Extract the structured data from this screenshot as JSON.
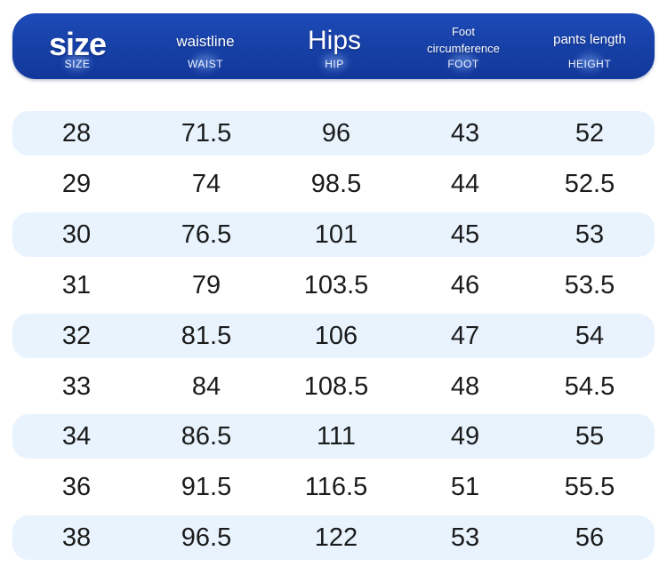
{
  "header": {
    "columns": [
      {
        "main": "size",
        "sub": "SIZE"
      },
      {
        "main": "waistline",
        "sub": "WAIST"
      },
      {
        "main": "Hips",
        "sub": "HIP"
      },
      {
        "main_line1": "Foot",
        "main_line2": "circumference",
        "sub": "FOOT"
      },
      {
        "main": "pants length",
        "sub": "HEIGHT"
      }
    ]
  },
  "rows": [
    [
      "28",
      "71.5",
      "96",
      "43",
      "52"
    ],
    [
      "29",
      "74",
      "98.5",
      "44",
      "52.5"
    ],
    [
      "30",
      "76.5",
      "101",
      "45",
      "53"
    ],
    [
      "31",
      "79",
      "103.5",
      "46",
      "53.5"
    ],
    [
      "32",
      "81.5",
      "106",
      "47",
      "54"
    ],
    [
      "33",
      "84",
      "108.5",
      "48",
      "54.5"
    ],
    [
      "34",
      "86.5",
      "111",
      "49",
      "55"
    ],
    [
      "36",
      "91.5",
      "116.5",
      "51",
      "55.5"
    ],
    [
      "38",
      "96.5",
      "122",
      "53",
      "56"
    ]
  ],
  "colors": {
    "header_background": "#1740a5",
    "header_text": "#ffffff",
    "row_shade": "#e8f3fe",
    "cell_text": "#1b1b1b"
  }
}
